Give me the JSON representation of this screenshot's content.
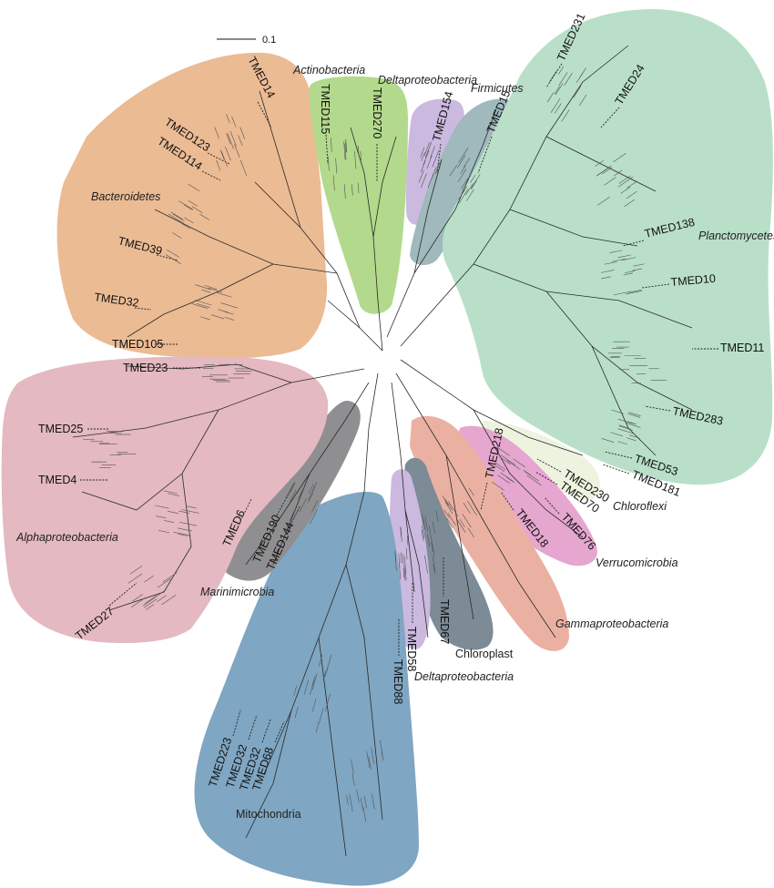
{
  "scale_bar": {
    "label": "0.1"
  },
  "clades": [
    {
      "key": "bacteroidetes",
      "label": "Bacteroidetes",
      "color": "#ebbb94",
      "italic": true
    },
    {
      "key": "actinobacteria",
      "label": "Actinobacteria",
      "color": "#b3d98c",
      "italic": true
    },
    {
      "key": "deltaproteobacteria-top",
      "label": "Deltaproteobacteria",
      "color": "#cbb9e0",
      "italic": true
    },
    {
      "key": "firmicutes",
      "label": "Firmicutes",
      "color": "#9fb9bc",
      "italic": true
    },
    {
      "key": "planctomycetes",
      "label": "Planctomycetes",
      "color": "#b9dfc9",
      "italic": true
    },
    {
      "key": "alphaproteobacteria",
      "label": "Alphaproteobacteria",
      "color": "#e4b9c1",
      "italic": true
    },
    {
      "key": "marinimicrobia",
      "label": "Marinimicrobia",
      "color": "#8f8f91",
      "italic": true
    },
    {
      "key": "mitochondria",
      "label": "Mitochondria",
      "color": "#7fa6c2",
      "italic": false
    },
    {
      "key": "deltaproteobacteria-bottom",
      "label": "Deltaproteobacteria",
      "color": "#cbb9e0",
      "italic": true
    },
    {
      "key": "chloroplast",
      "label": "Chloroplast",
      "color": "#7d8b96",
      "italic": false
    },
    {
      "key": "gammaproteobacteria",
      "label": "Gammaproteobacteria",
      "color": "#eab1a3",
      "italic": true
    },
    {
      "key": "verrucomicrobia",
      "label": "Verrucomicrobia",
      "color": "#e5a6cf",
      "italic": true
    },
    {
      "key": "chloroflexi",
      "label": "Chloroflexi",
      "color": "#edf3df",
      "italic": true
    }
  ],
  "tmeds": [
    "TMED14",
    "TMED123",
    "TMED114",
    "TMED39",
    "TMED32",
    "TMED105",
    "TMED115",
    "TMED270",
    "TMED154",
    "TMED15",
    "TMED231",
    "TMED24",
    "TMED138",
    "TMED10",
    "TMED11",
    "TMED283",
    "TMED53",
    "TMED181",
    "TMED230",
    "TMED70",
    "TMED76",
    "TMED18",
    "TMED218",
    "TMED67",
    "TMED58",
    "TMED88",
    "TMED223",
    "TMED32",
    "TMED32",
    "TMED68",
    "TMED27",
    "TMED144",
    "TMED190",
    "TMED6",
    "TMED4",
    "TMED25",
    "TMED23"
  ]
}
